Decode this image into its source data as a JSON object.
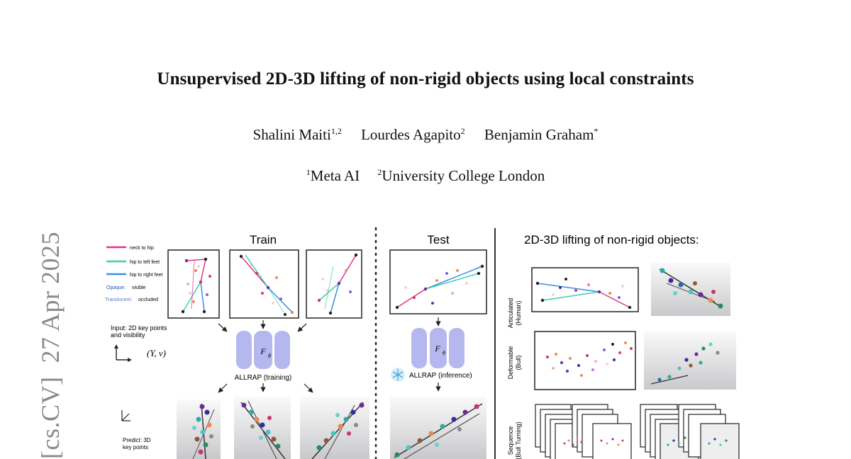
{
  "paper": {
    "title": "Unsupervised 2D-3D lifting of non-rigid objects using local constraints",
    "authors": [
      {
        "name": "Shalini Maiti",
        "sup": "1,2"
      },
      {
        "name": "Lourdes Agapito",
        "sup": "2"
      },
      {
        "name": "Benjamin Graham",
        "sup": "*"
      }
    ],
    "affiliations": [
      {
        "sup": "1",
        "name": "Meta AI"
      },
      {
        "sup": "2",
        "name": "University College London"
      }
    ],
    "arxiv_stamp": "[cs.CV]  27 Apr 2025"
  },
  "figure": {
    "train_label": "Train",
    "test_label": "Test",
    "lifting_title": "2D-3D lifting of non-rigid objects:",
    "legend": {
      "neck_to_hip": "neck to hip",
      "hip_to_left_feet": "hip to left feet",
      "hip_to_right_feet": "hip to right feet",
      "opaque_key": "Opaque:",
      "opaque_val": "visible",
      "translucent_key": "Translucent:",
      "translucent_val": "occluded"
    },
    "input_line1": "Input: 2D key points",
    "input_line2": "and visibility",
    "input_math": "(Y, ν)",
    "f_symbol": "F",
    "f_sub": "ϕ",
    "allrap_training": "ALLRAP (training)",
    "allrap_inference": "ALLRAP (inference)",
    "predict_line1": "Predict: 3D",
    "predict_line2": "key points",
    "articulated_line1": "Articulated",
    "articulated_line2": "(Human)",
    "deformable_line1": "Deformable",
    "deformable_line2": "(Bull)",
    "sequence_line1": "Sequence",
    "sequence_line2": "(Bull Turning)",
    "colors": {
      "neck_to_hip": "#e2338a",
      "hip_to_left_feet": "#3ccfae",
      "hip_to_right_feet": "#3a8fe0",
      "model_block": "#b5b8ee"
    }
  }
}
